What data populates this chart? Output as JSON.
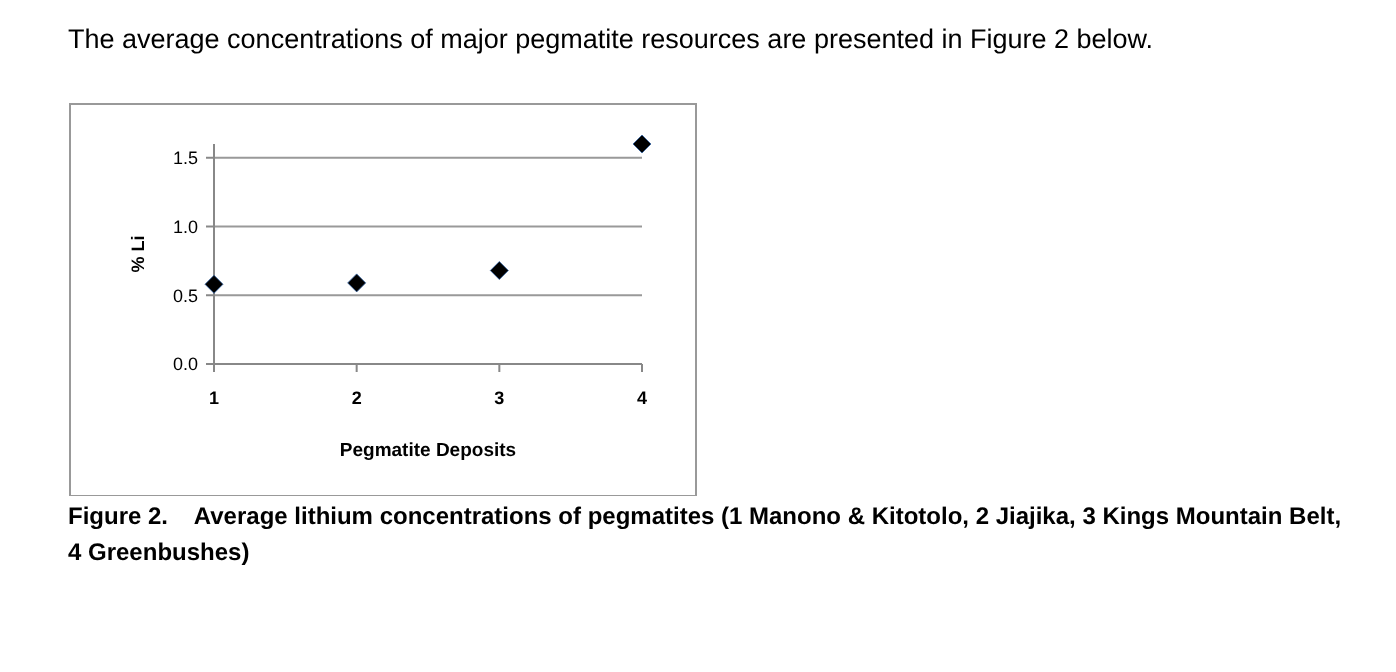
{
  "chart_data": {
    "type": "scatter",
    "title": "Figure 2.    Average lithium concentrations of pegmatites (1 Manono & Kitotolo, 2 Jiajika, 3 Kings Mountain Belt, 4 Greenbushes)",
    "annotations": [
      "The average concentrations of major pegmatite resources are presented in Figure 2 below."
    ],
    "xlabel": "Pegmatite Deposits",
    "ylabel": "% Li",
    "x": [
      1,
      2,
      3,
      4
    ],
    "series": [
      {
        "color": "#000000",
        "values": [
          0.58,
          0.59,
          0.68,
          1.6
        ]
      }
    ],
    "xlim": [
      1,
      4
    ],
    "xticks": [
      1,
      2,
      3,
      4
    ],
    "ylim": [
      0,
      1.6
    ],
    "yticks": [
      {
        "value": 0,
        "label": "0.0"
      },
      {
        "value": 0.5,
        "label": "0.5"
      },
      {
        "value": 1,
        "label": "1.0"
      },
      {
        "value": 1.5,
        "label": "1.5"
      }
    ],
    "grid": "y",
    "marker": "diamond"
  }
}
